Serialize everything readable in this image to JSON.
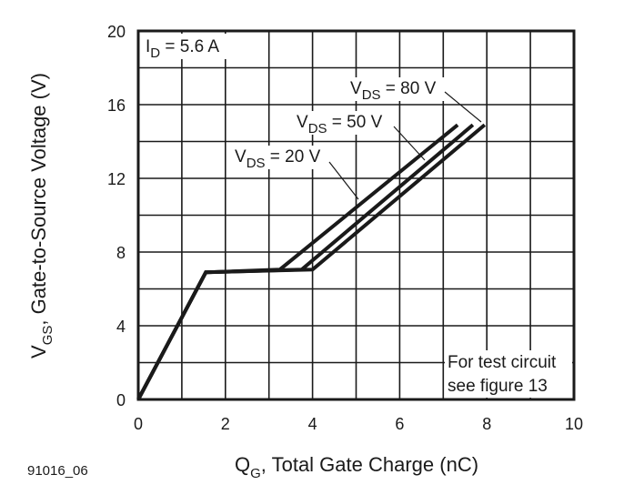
{
  "chart_data": {
    "type": "line",
    "xlabel": {
      "main": "Q",
      "sub": "G",
      "rest": ", Total Gate Charge (nC)"
    },
    "ylabel": {
      "main": "V",
      "sub": "GS",
      "rest": ", Gate-to-Source Voltage (V)"
    },
    "xlim": [
      0,
      10
    ],
    "ylim": [
      0,
      20
    ],
    "xticks": [
      "0",
      "2",
      "4",
      "6",
      "8",
      "10"
    ],
    "yticks": [
      "0",
      "4",
      "8",
      "12",
      "16",
      "20"
    ],
    "grid": true,
    "grid_x_step": 1,
    "grid_y_step": 2,
    "series": [
      {
        "name": {
          "main": "V",
          "sub": "DS",
          "rest": " = 20 V"
        },
        "points": [
          [
            0,
            0
          ],
          [
            1.55,
            6.9
          ],
          [
            3.25,
            7.05
          ],
          [
            7.33,
            14.9
          ]
        ]
      },
      {
        "name": {
          "main": "V",
          "sub": "DS",
          "rest": " = 50 V"
        },
        "points": [
          [
            0,
            0
          ],
          [
            1.55,
            6.9
          ],
          [
            3.75,
            7.05
          ],
          [
            7.68,
            14.9
          ]
        ]
      },
      {
        "name": {
          "main": "V",
          "sub": "DS",
          "rest": " = 80 V"
        },
        "points": [
          [
            0,
            0
          ],
          [
            1.55,
            6.9
          ],
          [
            4.0,
            7.05
          ],
          [
            7.95,
            14.9
          ]
        ]
      }
    ],
    "annotations": {
      "condition": {
        "main": "I",
        "sub": "D",
        "rest": " = 5.6 A"
      },
      "note_line1": "For test circuit",
      "note_line2": "see figure 13"
    },
    "line_color": "#1a1a1a"
  },
  "figure_id": "91016_06"
}
